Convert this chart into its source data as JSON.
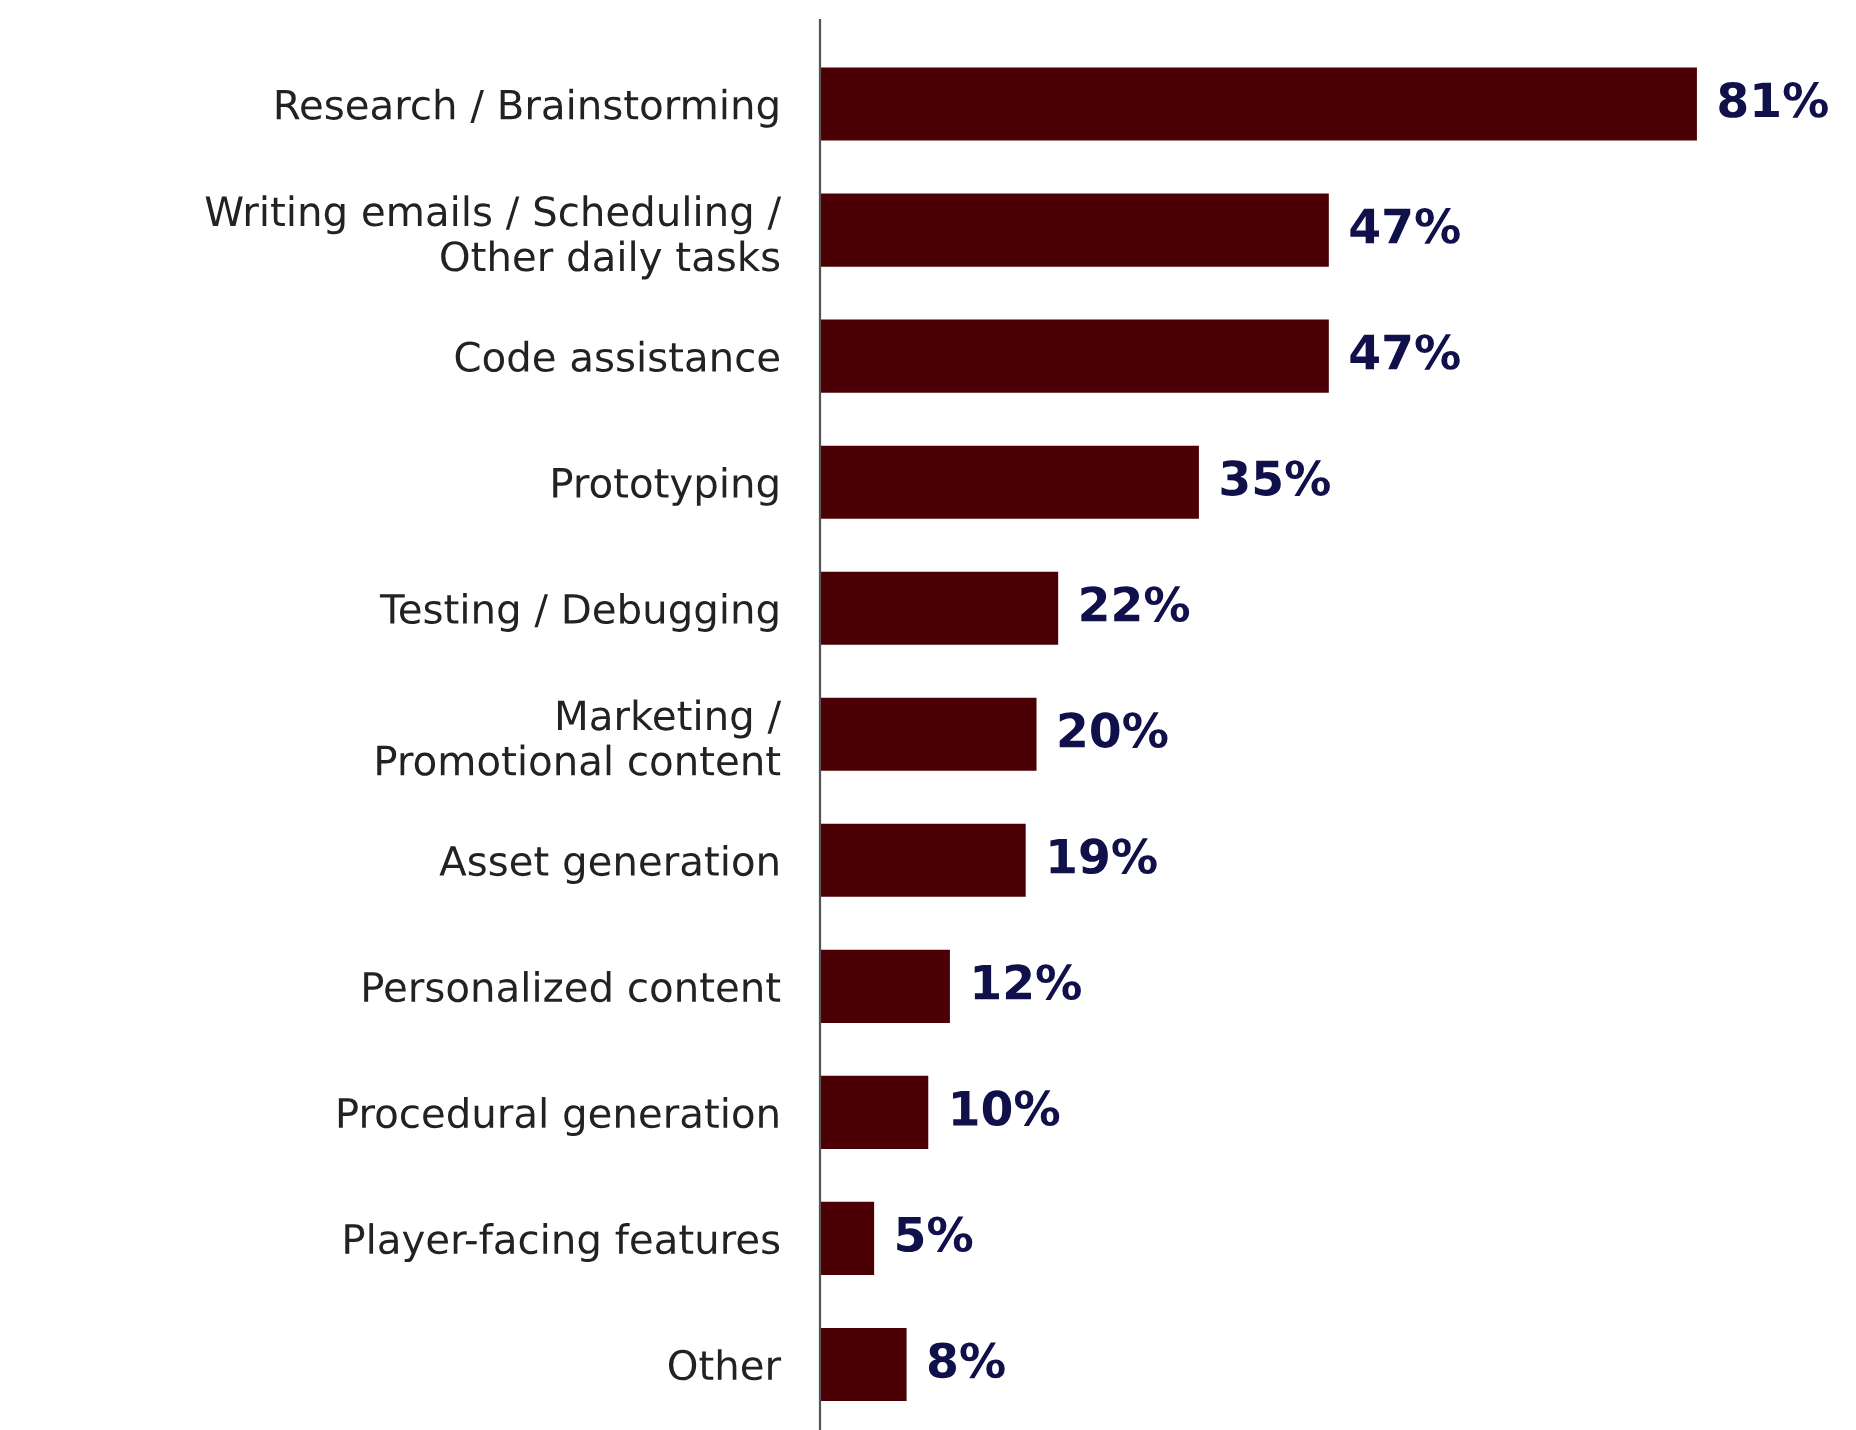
{
  "chart_data": {
    "type": "bar",
    "orientation": "horizontal",
    "categories": [
      "Research / Brainstorming",
      "Writing emails / Scheduling /\nOther daily tasks",
      "Code assistance",
      "Prototyping",
      "Testing / Debugging",
      "Marketing /\nPromotional content",
      "Asset generation",
      "Personalized content",
      "Procedural generation",
      "Player-facing features",
      "Other"
    ],
    "values": [
      81,
      47,
      47,
      35,
      22,
      20,
      19,
      12,
      10,
      5,
      8
    ],
    "value_labels": [
      "81%",
      "47%",
      "47%",
      "35%",
      "22%",
      "20%",
      "19%",
      "12%",
      "10%",
      "5%",
      "8%"
    ],
    "color": "#4a0004",
    "grid": false,
    "legend": false
  }
}
